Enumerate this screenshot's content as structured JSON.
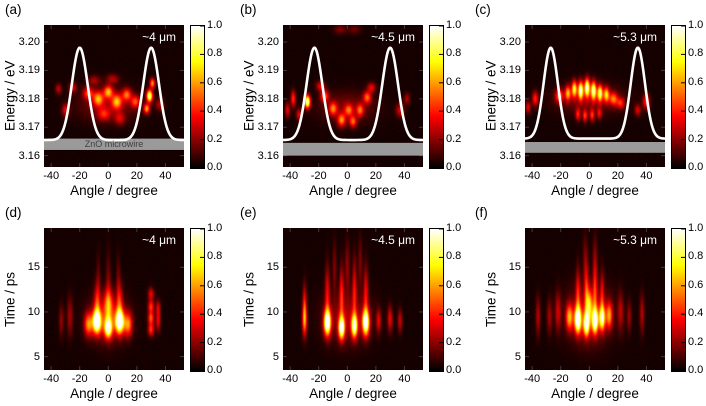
{
  "figure": {
    "type": "multi-panel angle-resolved heatmap figure",
    "colormap": "hot",
    "background": "#ffffff",
    "xlim": [
      -45,
      53
    ],
    "xticks": [
      [
        -40,
        "-40"
      ],
      [
        -20,
        "-20"
      ],
      [
        0,
        "0"
      ],
      [
        20,
        "20"
      ],
      [
        40,
        "40"
      ]
    ],
    "colorbar_ticks": [
      [
        1.0,
        "1.0"
      ],
      [
        0.8,
        "0.8"
      ],
      [
        0.6,
        "0.6"
      ],
      [
        0.4,
        "0.4"
      ],
      [
        0.2,
        "0.2"
      ],
      [
        0.0,
        "0.0"
      ]
    ],
    "overlay_curve_color": "#ffffff",
    "wire_band_color": "#9a9a9a"
  },
  "chart_data": [
    {
      "type": "heatmap",
      "panel_label": "(a)",
      "annotation": "~4 μm",
      "xlabel": "Angle / degree",
      "ylabel": "Energy / eV",
      "ylim": [
        3.156,
        3.206
      ],
      "yticks": [
        [
          3.2,
          "3.20"
        ],
        [
          3.19,
          "3.19"
        ],
        [
          3.18,
          "3.18"
        ],
        [
          3.17,
          "3.17"
        ],
        [
          3.16,
          "3.16"
        ]
      ],
      "band": {
        "top": 3.166,
        "bottom": 3.162,
        "color": "#9a9a9a",
        "label": "ZnO microwire"
      },
      "curve": {
        "color": "#ffffff",
        "baseline": 3.1655,
        "peak": 3.198,
        "centers": [
          -20,
          30
        ],
        "sigma": 5.5
      },
      "hotspots": [
        [
          -14,
          3.182,
          2.5,
          0.0015,
          0.4
        ],
        [
          -7,
          3.18,
          2.5,
          0.0018,
          0.5
        ],
        [
          0,
          3.1825,
          2.2,
          0.0015,
          0.55
        ],
        [
          6,
          3.179,
          2.5,
          0.0018,
          0.5
        ],
        [
          13,
          3.1815,
          2.2,
          0.0015,
          0.45
        ],
        [
          19,
          3.179,
          2.2,
          0.0015,
          0.4
        ],
        [
          27,
          3.1765,
          1.5,
          0.0012,
          0.55
        ],
        [
          29,
          3.181,
          1.5,
          0.0015,
          0.9
        ],
        [
          31,
          3.1855,
          1.3,
          0.0012,
          0.55
        ],
        [
          -30,
          3.176,
          1.8,
          0.0015,
          0.3
        ],
        [
          -35,
          3.1835,
          1.5,
          0.0012,
          0.25
        ],
        [
          -25,
          3.184,
          1.8,
          0.0012,
          0.28
        ],
        [
          0,
          3.178,
          14,
          0.004,
          0.18
        ],
        [
          3,
          3.187,
          3,
          0.0012,
          0.22
        ],
        [
          -10,
          3.1865,
          3,
          0.0012,
          0.2
        ],
        [
          -3,
          3.1745,
          3,
          0.0015,
          0.3
        ],
        [
          8,
          3.173,
          2.5,
          0.0015,
          0.25
        ],
        [
          36,
          3.178,
          2,
          0.0015,
          0.22
        ]
      ]
    },
    {
      "type": "heatmap",
      "panel_label": "(b)",
      "annotation": "~4.5 μm",
      "xlabel": "Angle / degree",
      "ylabel": "Energy / eV",
      "ylim": [
        3.156,
        3.206
      ],
      "yticks": [
        [
          3.2,
          "3.20"
        ],
        [
          3.19,
          "3.19"
        ],
        [
          3.18,
          "3.18"
        ],
        [
          3.17,
          "3.17"
        ],
        [
          3.16,
          "3.16"
        ]
      ],
      "band": {
        "top": 3.1645,
        "bottom": 3.16,
        "color": "#9a9a9a"
      },
      "curve": {
        "color": "#ffffff",
        "baseline": 3.1655,
        "peak": 3.198,
        "centers": [
          -23,
          30
        ],
        "sigma": 5.5
      },
      "hotspots": [
        [
          -28,
          3.179,
          1.4,
          0.0016,
          0.95
        ],
        [
          -38,
          3.18,
          1.2,
          0.002,
          0.4
        ],
        [
          -42,
          3.176,
          1.2,
          0.0018,
          0.3
        ],
        [
          -34,
          3.1745,
          1.3,
          0.0014,
          0.3
        ],
        [
          -16,
          3.181,
          2,
          0.0015,
          0.45
        ],
        [
          -10,
          3.1765,
          2,
          0.0016,
          0.45
        ],
        [
          -4,
          3.1725,
          2,
          0.0016,
          0.5
        ],
        [
          1,
          3.176,
          2,
          0.0014,
          0.4
        ],
        [
          4,
          3.172,
          1.8,
          0.0014,
          0.45
        ],
        [
          9,
          3.176,
          1.8,
          0.0015,
          0.42
        ],
        [
          14,
          3.1805,
          2,
          0.0015,
          0.45
        ],
        [
          -19,
          3.1845,
          2,
          0.0012,
          0.3
        ],
        [
          17,
          3.184,
          2,
          0.0012,
          0.3
        ],
        [
          0,
          3.177,
          13,
          0.0038,
          0.15
        ],
        [
          37,
          3.176,
          2,
          0.0016,
          0.28
        ],
        [
          42,
          3.18,
          1.5,
          0.0014,
          0.22
        ],
        [
          -5,
          3.2045,
          3,
          0.0012,
          0.15
        ],
        [
          5,
          3.2045,
          3,
          0.0012,
          0.12
        ]
      ]
    },
    {
      "type": "heatmap",
      "panel_label": "(c)",
      "annotation": "~5.3 μm",
      "xlabel": "Angle / degree",
      "ylabel": "Energy / eV",
      "ylim": [
        3.156,
        3.206
      ],
      "yticks": [
        [
          3.2,
          "3.20"
        ],
        [
          3.19,
          "3.19"
        ],
        [
          3.18,
          "3.18"
        ],
        [
          3.17,
          "3.17"
        ],
        [
          3.16,
          "3.16"
        ]
      ],
      "band": {
        "top": 3.1648,
        "bottom": 3.161,
        "color": "#9a9a9a"
      },
      "curve": {
        "color": "#ffffff",
        "baseline": 3.166,
        "peak": 3.198,
        "centers": [
          -27,
          34
        ],
        "sigma": 5.0
      },
      "hotspots": [
        [
          -15,
          3.182,
          1.4,
          0.0018,
          0.55
        ],
        [
          -10.5,
          3.1835,
          1.3,
          0.002,
          0.7
        ],
        [
          -6,
          3.183,
          1.3,
          0.0022,
          0.85
        ],
        [
          -1.5,
          3.184,
          1.3,
          0.0022,
          0.9
        ],
        [
          3,
          3.183,
          1.3,
          0.0022,
          0.85
        ],
        [
          7.5,
          3.182,
          1.3,
          0.002,
          0.75
        ],
        [
          12,
          3.1815,
          1.4,
          0.0018,
          0.6
        ],
        [
          -8,
          3.1745,
          1.2,
          0.0015,
          0.35
        ],
        [
          -3,
          3.174,
          1.2,
          0.0015,
          0.4
        ],
        [
          2,
          3.1742,
          1.2,
          0.0015,
          0.38
        ],
        [
          7,
          3.1748,
          1.2,
          0.0014,
          0.3
        ],
        [
          -21,
          3.181,
          2,
          0.0016,
          0.45
        ],
        [
          17,
          3.18,
          2,
          0.0016,
          0.45
        ],
        [
          22,
          3.1785,
          2,
          0.0014,
          0.35
        ],
        [
          -38,
          3.18,
          1.5,
          0.0018,
          0.38
        ],
        [
          -43,
          3.177,
          1.3,
          0.0015,
          0.3
        ],
        [
          40,
          3.179,
          1.8,
          0.0018,
          0.38
        ],
        [
          34,
          3.176,
          1.5,
          0.0014,
          0.28
        ],
        [
          0,
          3.18,
          15,
          0.0035,
          0.18
        ]
      ]
    },
    {
      "type": "heatmap",
      "panel_label": "(d)",
      "annotation": "~4 μm",
      "xlabel": "Angle / degree",
      "ylabel": "Time / ps",
      "ylim": [
        3.5,
        19.4
      ],
      "yticks": [
        [
          15,
          "15"
        ],
        [
          10,
          "10"
        ],
        [
          5,
          "5"
        ]
      ],
      "hotspots": [
        [
          -8,
          8.9,
          2.2,
          0.9,
          1.0
        ],
        [
          8,
          8.9,
          2.2,
          0.9,
          1.0
        ],
        [
          0,
          8.2,
          2.0,
          0.8,
          0.85
        ],
        [
          -14,
          8.6,
          2.0,
          0.9,
          0.5
        ],
        [
          14,
          8.6,
          2.0,
          0.9,
          0.5
        ],
        [
          0,
          10.8,
          2.5,
          1.2,
          0.4
        ],
        [
          -8,
          11,
          1.5,
          1.5,
          0.3
        ],
        [
          8,
          11,
          1.5,
          1.5,
          0.3
        ],
        [
          0,
          13,
          1.2,
          2.5,
          0.15
        ],
        [
          -7,
          13.5,
          1,
          2,
          0.12
        ],
        [
          7,
          13.5,
          1,
          2,
          0.12
        ],
        [
          30,
          8,
          1.5,
          0.5,
          0.4
        ],
        [
          30,
          9.3,
          1.5,
          0.5,
          0.45
        ],
        [
          30,
          10.6,
          1.5,
          0.5,
          0.4
        ],
        [
          30,
          12,
          1.5,
          0.5,
          0.3
        ],
        [
          35,
          9,
          1.2,
          0.8,
          0.3
        ],
        [
          35,
          10.5,
          1.2,
          0.6,
          0.25
        ],
        [
          -27,
          9.5,
          1.5,
          1.5,
          0.2
        ],
        [
          -33,
          9,
          1.2,
          1.2,
          0.18
        ],
        [
          0,
          9.3,
          9,
          1.8,
          0.25
        ]
      ]
    },
    {
      "type": "heatmap",
      "panel_label": "(e)",
      "annotation": "~4.5 μm",
      "xlabel": "Angle / degree",
      "ylabel": "Time / ps",
      "ylim": [
        3.5,
        19.4
      ],
      "yticks": [
        [
          15,
          "15"
        ],
        [
          10,
          "10"
        ],
        [
          5,
          "5"
        ]
      ],
      "hotspots": [
        [
          -14,
          8.8,
          1.8,
          1.0,
          1.0
        ],
        [
          -4,
          8.2,
          1.6,
          0.9,
          0.9
        ],
        [
          5,
          8.4,
          1.6,
          0.9,
          0.85
        ],
        [
          13,
          8.8,
          1.8,
          1.0,
          0.95
        ],
        [
          -14,
          12,
          1.2,
          2.2,
          0.3
        ],
        [
          -4,
          12,
          1.1,
          2.2,
          0.33
        ],
        [
          5,
          12.5,
          1.1,
          2.4,
          0.3
        ],
        [
          13,
          12,
          1.2,
          2.2,
          0.3
        ],
        [
          0,
          15,
          1.2,
          2,
          0.18
        ],
        [
          -9,
          15,
          1,
          2,
          0.15
        ],
        [
          9,
          15.5,
          1,
          2,
          0.15
        ],
        [
          -30,
          9,
          1.2,
          1.2,
          0.5
        ],
        [
          -30,
          11,
          1,
          1.5,
          0.3
        ],
        [
          30,
          9.2,
          1.3,
          1,
          0.3
        ],
        [
          37,
          9,
          1.2,
          0.9,
          0.25
        ],
        [
          22,
          9,
          1.2,
          0.9,
          0.28
        ],
        [
          0,
          9.5,
          11,
          2,
          0.2
        ]
      ]
    },
    {
      "type": "heatmap",
      "panel_label": "(f)",
      "annotation": "~5.3 μm",
      "xlabel": "Angle / degree",
      "ylabel": "Time / ps",
      "ylim": [
        3.5,
        19.4
      ],
      "yticks": [
        [
          15,
          "15"
        ],
        [
          10,
          "10"
        ],
        [
          5,
          "5"
        ]
      ],
      "hotspots": [
        [
          -8,
          9.1,
          1.7,
          1.0,
          0.95
        ],
        [
          -2,
          8.6,
          1.5,
          0.9,
          0.85
        ],
        [
          4,
          9.0,
          1.5,
          0.95,
          0.9
        ],
        [
          9,
          9.3,
          1.5,
          0.95,
          0.75
        ],
        [
          -14,
          9.4,
          1.7,
          1.0,
          0.55
        ],
        [
          14,
          9.6,
          1.6,
          1.0,
          0.5
        ],
        [
          -8,
          12,
          1.1,
          2,
          0.3
        ],
        [
          -2,
          12.5,
          1.1,
          2.2,
          0.3
        ],
        [
          4,
          12.5,
          1.1,
          2.2,
          0.3
        ],
        [
          0,
          10.8,
          1.5,
          1.2,
          0.45
        ],
        [
          9,
          12,
          1,
          1.8,
          0.25
        ],
        [
          -3,
          16,
          1.2,
          2,
          0.12
        ],
        [
          4,
          16,
          1.2,
          2,
          0.12
        ],
        [
          -22,
          10,
          1.5,
          1.5,
          0.25
        ],
        [
          -28,
          9.5,
          1.3,
          1.3,
          0.2
        ],
        [
          -36,
          9.5,
          1.2,
          1.5,
          0.22
        ],
        [
          22,
          10,
          1.5,
          1.5,
          0.22
        ],
        [
          28,
          9.5,
          1.2,
          1.2,
          0.18
        ],
        [
          37,
          9.8,
          1.2,
          1.5,
          0.22
        ],
        [
          0,
          9.8,
          10,
          2.2,
          0.28
        ]
      ]
    }
  ]
}
